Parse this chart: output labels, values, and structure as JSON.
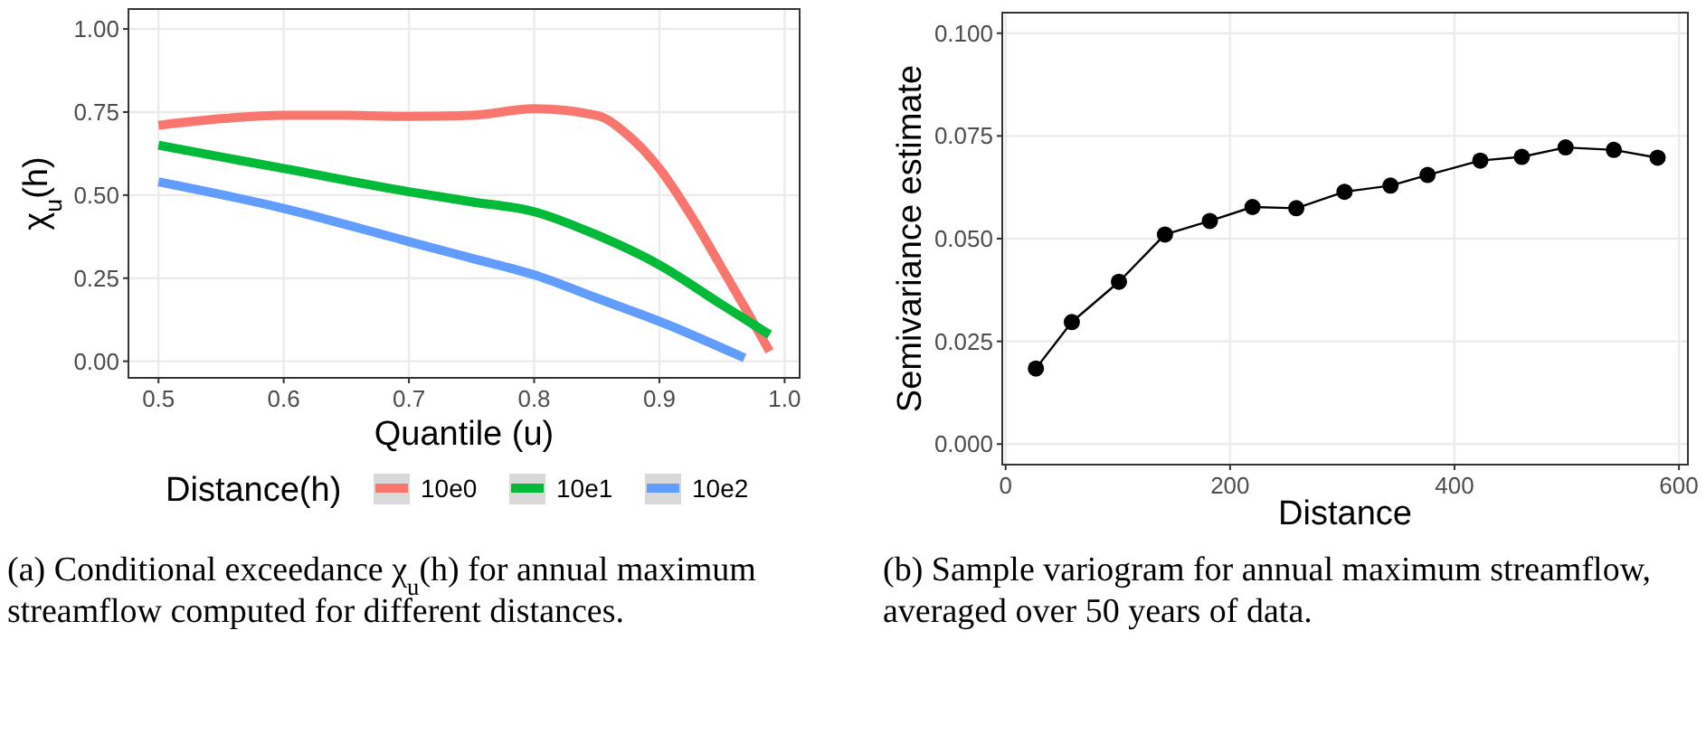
{
  "chart_data": [
    {
      "type": "line",
      "xlabel": "Quantile (u)",
      "ylabel": "χ$_{u}$(h)",
      "legend_title": "Distance(h)",
      "legend": "bottom",
      "grid": true,
      "marker": "none",
      "line_style": "solid",
      "xlim": [
        0.476,
        1.012
      ],
      "xticks": [
        0.5,
        0.6,
        0.7,
        0.8,
        0.9,
        {
          "value": 1,
          "label": "1.0"
        }
      ],
      "ylim": [
        -0.05,
        1.06
      ],
      "yticks": [
        {
          "value": 0,
          "label": "0.00"
        },
        {
          "value": 0.25,
          "label": "0.25"
        },
        {
          "value": 0.5,
          "label": "0.50"
        },
        {
          "value": 0.75,
          "label": "0.75"
        },
        {
          "value": 1,
          "label": "1.00"
        }
      ],
      "series": [
        {
          "name": "10e0",
          "color": "#f8766d",
          "x": [
            0.5,
            0.55,
            0.6,
            0.65,
            0.7,
            0.75,
            0.8,
            0.85,
            0.875,
            0.9,
            0.925,
            0.95,
            0.97,
            0.988
          ],
          "values": [
            0.71,
            0.73,
            0.74,
            0.74,
            0.737,
            0.74,
            0.76,
            0.74,
            0.68,
            0.58,
            0.44,
            0.28,
            0.15,
            0.03
          ]
        },
        {
          "name": "10e1",
          "color": "#00ba38",
          "x": [
            0.5,
            0.6,
            0.7,
            0.75,
            0.8,
            0.85,
            0.9,
            0.95,
            0.988
          ],
          "values": [
            0.65,
            0.58,
            0.51,
            0.48,
            0.45,
            0.38,
            0.29,
            0.17,
            0.08
          ]
        },
        {
          "name": "10e2",
          "color": "#619cff",
          "x": [
            0.5,
            0.6,
            0.7,
            0.75,
            0.8,
            0.85,
            0.9,
            0.968
          ],
          "values": [
            0.54,
            0.46,
            0.36,
            0.31,
            0.26,
            0.19,
            0.12,
            0.01
          ]
        }
      ],
      "annotations": [
        "(a) Conditional exceedance χ$_{u}$(h) for annual maximum streamflow computed for different distances."
      ]
    },
    {
      "type": "line",
      "xlabel": "Distance",
      "ylabel": "Semivariance estimate",
      "grid": true,
      "marker": "circle",
      "line_style": "solid",
      "xlim": [
        -3,
        608
      ],
      "xticks": [
        0,
        200,
        400,
        600
      ],
      "ylim": [
        -0.005,
        0.105
      ],
      "yticks": [
        {
          "value": 0,
          "label": "0.000"
        },
        {
          "value": 0.025,
          "label": "0.025"
        },
        {
          "value": 0.05,
          "label": "0.050"
        },
        {
          "value": 0.075,
          "label": "0.075"
        },
        {
          "value": 0.1,
          "label": "0.100"
        }
      ],
      "series": [
        {
          "color": "#000000",
          "x": [
            27,
            59,
            101,
            142,
            182,
            220,
            259,
            302,
            343,
            376,
            423,
            460,
            499,
            542,
            581
          ],
          "values": [
            0.0184,
            0.0297,
            0.0395,
            0.051,
            0.0543,
            0.0577,
            0.0574,
            0.0614,
            0.0629,
            0.0655,
            0.069,
            0.0699,
            0.0722,
            0.0716,
            0.0697
          ]
        }
      ],
      "annotations": [
        "(b) Sample variogram for annual maximum streamflow, averaged over 50 years of data."
      ]
    }
  ]
}
